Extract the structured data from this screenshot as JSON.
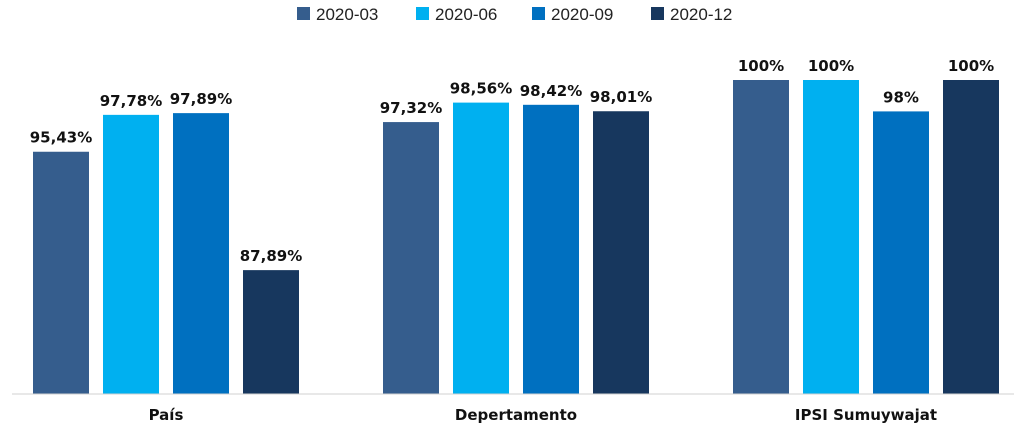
{
  "chart_data": {
    "type": "bar",
    "categories": [
      "País",
      "Depertamento",
      "IPSI Sumuywajat"
    ],
    "series": [
      {
        "name": "2020-03",
        "color": "#355d8d",
        "values": [
          95.43,
          97.32,
          100
        ],
        "labels": [
          "95,43%",
          "97,32%",
          "100%"
        ]
      },
      {
        "name": "2020-06",
        "color": "#00b0f0",
        "values": [
          97.78,
          98.56,
          100
        ],
        "labels": [
          "97,78%",
          "98,56%",
          "100%"
        ]
      },
      {
        "name": "2020-09",
        "color": "#0070c0",
        "values": [
          97.89,
          98.42,
          98
        ],
        "labels": [
          "97,89%",
          "98,42%",
          "98%"
        ]
      },
      {
        "name": "2020-12",
        "color": "#17375e",
        "values": [
          87.89,
          98.01,
          100
        ],
        "labels": [
          "87,89%",
          "98,01%",
          "100%"
        ]
      }
    ],
    "ylim": [
      80,
      100
    ],
    "grid": false,
    "legend_position": "top-center",
    "title": "",
    "xlabel": "",
    "ylabel": ""
  }
}
